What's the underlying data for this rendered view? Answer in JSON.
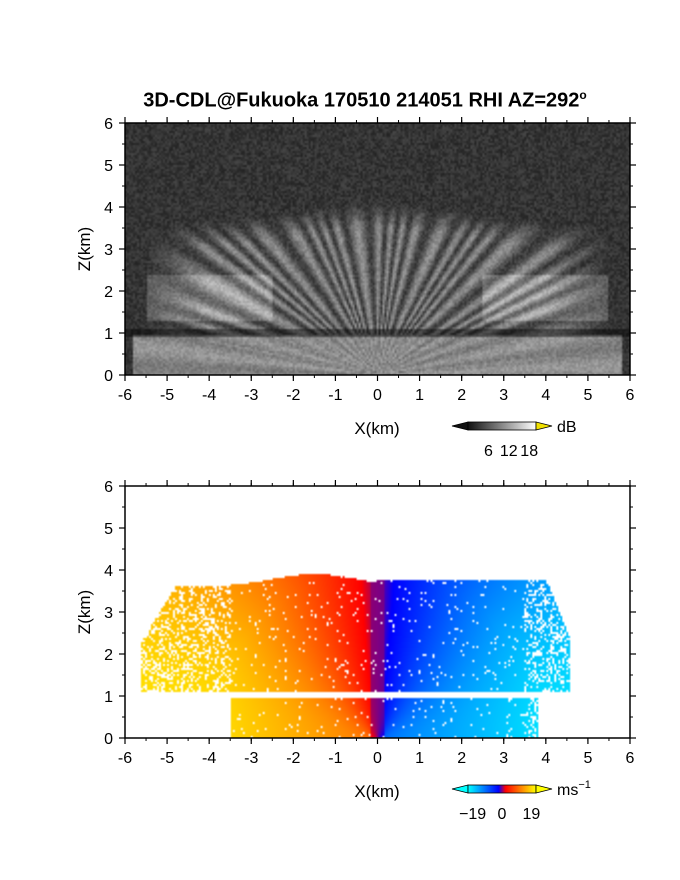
{
  "page": {
    "title": "3D-CDL@Fukuoka 170510 214051 RHI AZ=292",
    "title_superscript": "o"
  },
  "chart_data": [
    {
      "type": "heatmap",
      "quantity": "backscatter",
      "xlabel": "X(km)",
      "ylabel": "Z(km)",
      "xlim": [
        -6,
        6
      ],
      "ylim": [
        0,
        6
      ],
      "xticks": [
        -6,
        -5,
        -4,
        -3,
        -2,
        -1,
        0,
        1,
        2,
        3,
        4,
        5,
        6
      ],
      "yticks": [
        0,
        1,
        2,
        3,
        4,
        5,
        6
      ],
      "colorbar": {
        "unit": "dB",
        "ticks": [
          6,
          12,
          18
        ],
        "range": [
          0,
          20
        ],
        "colors": [
          "#111111",
          "#ffffff"
        ],
        "over_color": "#f0e000"
      },
      "features": {
        "plume_top_km": 4.0,
        "dark_layer_km": 1.0,
        "lower_layer_top_km": 0.9
      }
    },
    {
      "type": "heatmap",
      "quantity": "radial velocity",
      "xlabel": "X(km)",
      "ylabel": "Z(km)",
      "xlim": [
        -6,
        6
      ],
      "ylim": [
        0,
        6
      ],
      "xticks": [
        -6,
        -5,
        -4,
        -3,
        -2,
        -1,
        0,
        1,
        2,
        3,
        4,
        5,
        6
      ],
      "yticks": [
        0,
        1,
        2,
        3,
        4,
        5,
        6
      ],
      "colorbar": {
        "unit": "ms",
        "unit_superscript": "−1",
        "ticks": [
          -19,
          0,
          19
        ],
        "tick_labels": [
          "−19",
          "0",
          "19"
        ],
        "range": [
          -22,
          22
        ],
        "colors": [
          "#00ffff",
          "#0000ff",
          "#ff0000",
          "#ffff00"
        ]
      },
      "features": {
        "echo_top_km": 4.0,
        "gap_layer_km": 1.0,
        "left_sign": "positive",
        "right_sign": "negative"
      }
    }
  ]
}
